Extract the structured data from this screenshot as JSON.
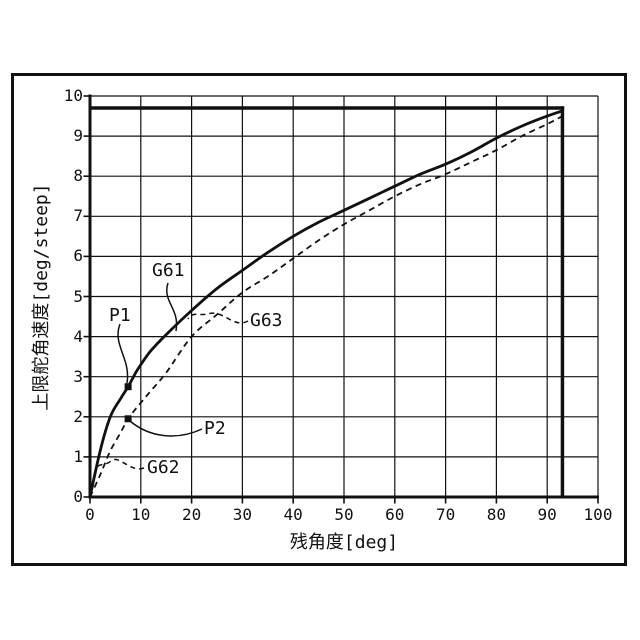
{
  "figure": {
    "background": "#ffffff",
    "border_color": "#111111"
  },
  "chart_data": {
    "type": "line",
    "title": "",
    "xlabel": "残角度[deg]",
    "ylabel": "上限舵角速度[deg/steep]",
    "xlim": [
      0,
      100
    ],
    "ylim": [
      0,
      10
    ],
    "x_ticks": [
      0,
      10,
      20,
      30,
      40,
      50,
      60,
      70,
      80,
      90,
      100
    ],
    "y_ticks": [
      0,
      1,
      2,
      3,
      4,
      5,
      6,
      7,
      8,
      9,
      10
    ],
    "grid": true,
    "legend": "none",
    "line_color": "#111111",
    "series": [
      {
        "name": "G61",
        "style": "solid",
        "x": [
          0,
          2,
          4,
          6,
          7.5,
          9,
          10,
          12,
          15,
          20,
          25,
          30,
          35,
          40,
          45,
          50,
          55,
          60,
          65,
          70,
          75,
          80,
          85,
          90,
          93
        ],
        "y": [
          0,
          1.15,
          2.0,
          2.45,
          2.75,
          3.1,
          3.3,
          3.65,
          4.05,
          4.65,
          5.2,
          5.65,
          6.1,
          6.5,
          6.85,
          7.15,
          7.45,
          7.75,
          8.05,
          8.3,
          8.6,
          8.95,
          9.25,
          9.5,
          9.63
        ]
      },
      {
        "name": "G63",
        "style": "dashed",
        "x": [
          0,
          2,
          4,
          6,
          7.5,
          9,
          10,
          12,
          15,
          20,
          25,
          30,
          35,
          40,
          45,
          50,
          55,
          60,
          65,
          70,
          75,
          80,
          85,
          90,
          93
        ],
        "y": [
          0,
          0.55,
          1.15,
          1.6,
          1.95,
          2.2,
          2.35,
          2.65,
          3.1,
          4.0,
          4.55,
          5.1,
          5.5,
          5.95,
          6.4,
          6.8,
          7.15,
          7.5,
          7.8,
          8.05,
          8.35,
          8.65,
          9.0,
          9.3,
          9.5
        ]
      }
    ],
    "limit_lines": {
      "y_max": 9.7,
      "x_max": 93
    },
    "points": [
      {
        "name": "P1",
        "x": 7.5,
        "y": 2.75,
        "marker": "square"
      },
      {
        "name": "P2",
        "x": 7.5,
        "y": 1.95,
        "marker": "square"
      }
    ],
    "labels": {
      "g61": "G61",
      "g62": "G62",
      "g63": "G63",
      "p1": "P1",
      "p2": "P2"
    }
  }
}
